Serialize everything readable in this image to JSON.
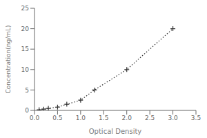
{
  "chart_data": {
    "type": "line",
    "xlabel": "Optical Density",
    "ylabel": "Concentration(ng/mL)",
    "x": [
      0.1,
      0.2,
      0.3,
      0.5,
      0.7,
      1.0,
      1.3,
      2.0,
      3.0
    ],
    "values": [
      0.15,
      0.3,
      0.5,
      0.8,
      1.5,
      2.5,
      5.0,
      10.0,
      20.0
    ],
    "color": "#333333",
    "marker": "+",
    "line_style": "dotted",
    "xlim": [
      0,
      3.5
    ],
    "ylim": [
      0,
      25
    ],
    "xticks": [
      {
        "value": 0,
        "label": "0.0"
      },
      0.5,
      {
        "value": 1,
        "label": "1.0"
      },
      1.5,
      {
        "value": 2,
        "label": "2.0"
      },
      2.5,
      {
        "value": 3,
        "label": "3.0"
      },
      3.5
    ],
    "yticks": [
      0,
      5,
      10,
      15,
      20,
      25
    ],
    "grid": false
  }
}
